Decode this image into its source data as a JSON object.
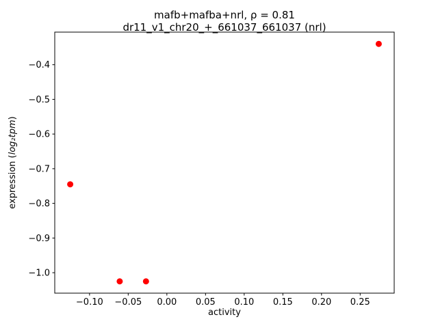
{
  "chart_data": {
    "type": "scatter",
    "title": "mafb+mafba+nrl, ρ = 0.81",
    "subtitle": "dr11_v1_chr20_+_661037_661037 (nrl)",
    "xlabel": "activity",
    "ylabel": "expression (log₂tpm)",
    "ylabel_parts": {
      "prefix": "expression (",
      "math": "log₂tpm",
      "suffix": ")"
    },
    "marker_color": "#ff0000",
    "marker_radius_px": 4.5,
    "xlim": [
      -0.145,
      0.294
    ],
    "ylim": [
      -1.059,
      -0.306
    ],
    "xticks": [
      -0.1,
      -0.05,
      0.0,
      0.05,
      0.1,
      0.15,
      0.2,
      0.25
    ],
    "xtick_labels": [
      "−0.10",
      "−0.05",
      "0.00",
      "0.05",
      "0.10",
      "0.15",
      "0.20",
      "0.25"
    ],
    "yticks": [
      -0.4,
      -0.5,
      -0.6,
      -0.7,
      -0.8,
      -0.9,
      -1.0
    ],
    "ytick_labels": [
      "−0.4",
      "−0.5",
      "−0.6",
      "−0.7",
      "−0.8",
      "−0.9",
      "−1.0"
    ],
    "points": [
      {
        "x": -0.125,
        "y": -0.745
      },
      {
        "x": -0.061,
        "y": -1.025
      },
      {
        "x": -0.027,
        "y": -1.025
      },
      {
        "x": 0.274,
        "y": -0.34
      }
    ],
    "grid": false,
    "legend_position": "none"
  }
}
